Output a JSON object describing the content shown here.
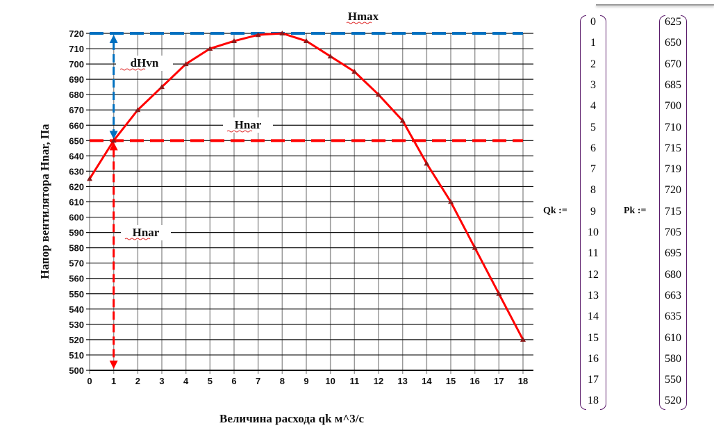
{
  "chart_data": {
    "type": "line",
    "title": "",
    "xlabel": "Величина расхода qk м^3/с",
    "ylabel": "Напор вентилятора  Hnar, Па",
    "x": [
      0,
      1,
      2,
      3,
      4,
      5,
      6,
      7,
      8,
      9,
      10,
      11,
      12,
      13,
      14,
      15,
      16,
      17,
      18
    ],
    "series": [
      {
        "name": "Pk",
        "values": [
          625,
          650,
          670,
          685,
          700,
          710,
          715,
          719,
          720,
          715,
          705,
          695,
          680,
          663,
          635,
          610,
          580,
          550,
          520
        ],
        "color": "#ff0000"
      }
    ],
    "xlim": [
      0,
      18
    ],
    "ylim": [
      500,
      720
    ],
    "xticks": [
      0,
      1,
      2,
      3,
      4,
      5,
      6,
      7,
      8,
      9,
      10,
      11,
      12,
      13,
      14,
      15,
      16,
      17,
      18
    ],
    "yticks": [
      500,
      510,
      520,
      530,
      540,
      550,
      560,
      570,
      580,
      590,
      600,
      610,
      620,
      630,
      640,
      650,
      660,
      670,
      680,
      690,
      700,
      710,
      720
    ],
    "grid": true,
    "reference_lines": [
      {
        "name": "Hmax",
        "y": 720,
        "color": "#0070c0"
      },
      {
        "name": "Hnar",
        "y": 650,
        "color": "#ff0000"
      }
    ],
    "annotations": {
      "hmax": "Hmax",
      "dhvn": "dHvn",
      "hnar_line": "Hnar",
      "hnar_vertical": "Hnar"
    }
  },
  "matrices": {
    "qk_label": "Qk :=",
    "pk_label": "Pk :=",
    "qk": [
      "0",
      "1",
      "2",
      "3",
      "4",
      "5",
      "6",
      "7",
      "8",
      "9",
      "10",
      "11",
      "12",
      "13",
      "14",
      "15",
      "16",
      "17",
      "18"
    ],
    "pk": [
      "625",
      "650",
      "670",
      "685",
      "700",
      "710",
      "715",
      "719",
      "720",
      "715",
      "705",
      "695",
      "680",
      "663",
      "635",
      "610",
      "580",
      "550",
      "520"
    ]
  }
}
